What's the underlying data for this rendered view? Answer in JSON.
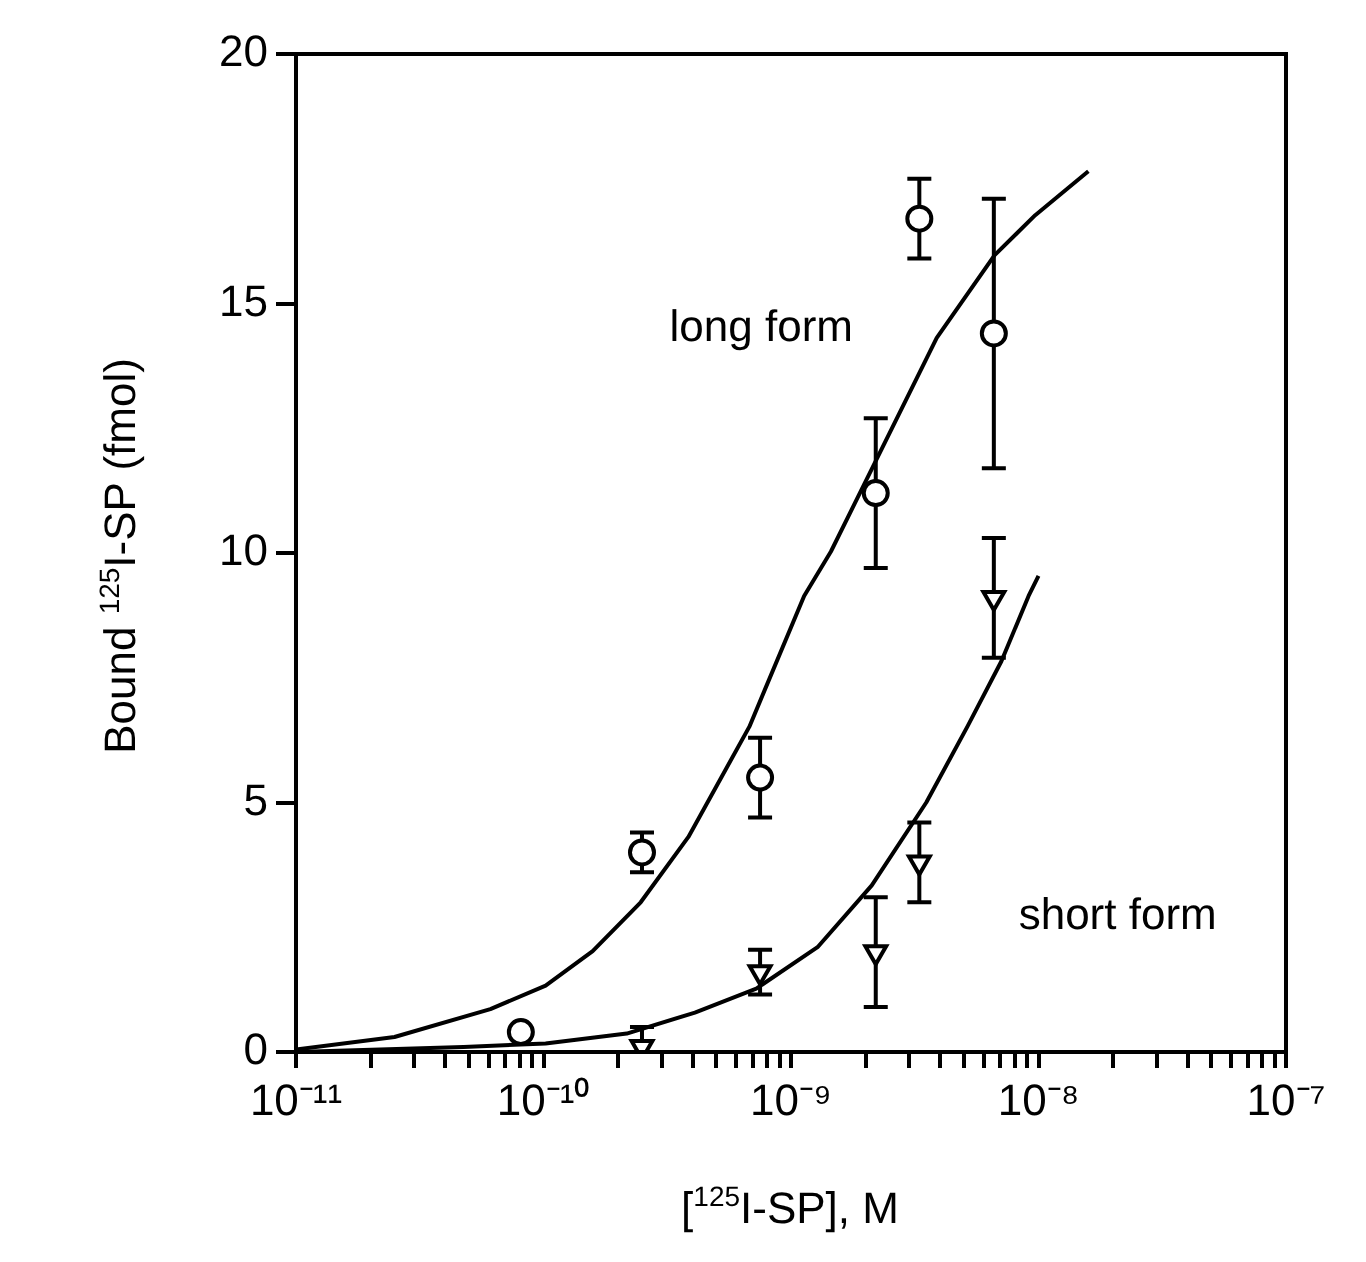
{
  "chart_data": {
    "type": "scatter",
    "xlabel": "[$^{125}$I-SP], M",
    "ylabel": "Bound $^{125}$I-SP (fmol)",
    "log": "x",
    "grid": false,
    "xlim": [
      1e-11,
      1e-07
    ],
    "xticks": [
      {
        "value": 1e-11,
        "label": "10⁻¹¹"
      },
      {
        "value": 2e-11,
        "label": null
      },
      {
        "value": 3e-11,
        "label": null
      },
      {
        "value": 4e-11,
        "label": null
      },
      {
        "value": 5e-11,
        "label": null
      },
      {
        "value": 6e-11,
        "label": null
      },
      {
        "value": 7e-11,
        "label": null
      },
      {
        "value": 8e-11,
        "label": null
      },
      {
        "value": 9e-11,
        "label": null
      },
      {
        "value": 1e-10,
        "label": "10⁻¹⁰"
      },
      {
        "value": 2e-10,
        "label": null
      },
      {
        "value": 3e-10,
        "label": null
      },
      {
        "value": 4e-10,
        "label": null
      },
      {
        "value": 5e-10,
        "label": null
      },
      {
        "value": 6e-10,
        "label": null
      },
      {
        "value": 7e-10,
        "label": null
      },
      {
        "value": 8e-10,
        "label": null
      },
      {
        "value": 9e-10,
        "label": null
      },
      {
        "value": 1e-09,
        "label": "10⁻⁹"
      },
      {
        "value": 2e-09,
        "label": null
      },
      {
        "value": 3e-09,
        "label": null
      },
      {
        "value": 4e-09,
        "label": null
      },
      {
        "value": 5e-09,
        "label": null
      },
      {
        "value": 6e-09,
        "label": null
      },
      {
        "value": 7e-09,
        "label": null
      },
      {
        "value": 8e-09,
        "label": null
      },
      {
        "value": 9e-09,
        "label": null
      },
      {
        "value": 1e-08,
        "label": "10⁻⁸"
      },
      {
        "value": 2e-08,
        "label": null
      },
      {
        "value": 3e-08,
        "label": null
      },
      {
        "value": 4e-08,
        "label": null
      },
      {
        "value": 5e-08,
        "label": null
      },
      {
        "value": 6e-08,
        "label": null
      },
      {
        "value": 7e-08,
        "label": null
      },
      {
        "value": 8e-08,
        "label": null
      },
      {
        "value": 9e-08,
        "label": null
      },
      {
        "value": 1e-07,
        "label": "10⁻⁷"
      }
    ],
    "ylim": [
      0,
      20
    ],
    "yticks": [
      0,
      5,
      10,
      15,
      20
    ],
    "annotations": [
      "long form",
      "short form"
    ],
    "series": [
      {
        "type": "scatter",
        "marker": "circle",
        "color": "#000000",
        "x": [
          8.1e-11,
          2.5e-10,
          7.5e-10,
          2.2e-09,
          3.3e-09,
          6.6e-09
        ],
        "values": [
          0.4,
          4.0,
          5.5,
          11.2,
          16.7,
          14.4
        ],
        "errors": [
          null,
          0.4,
          0.8,
          1.5,
          0.8,
          2.7
        ]
      },
      {
        "type": "scatter",
        "marker": "triangle",
        "color": "#000000",
        "x": [
          2.5e-10,
          7.5e-10,
          2.2e-09,
          3.3e-09,
          6.6e-09
        ],
        "values": [
          0.1,
          1.6,
          2.0,
          3.8,
          9.1
        ],
        "errors": [
          [
            0,
            0.5
          ],
          0.45,
          1.1,
          0.8,
          1.2
        ]
      },
      {
        "type": "line",
        "marker": "none",
        "color": "#000000",
        "x": [
          1e-11,
          2.5e-11,
          6.1e-11,
          1.02e-10,
          1.58e-10,
          2.47e-10,
          3.85e-10,
          6.79e-10,
          1.13e-09,
          1.45e-09,
          2.26e-09,
          3.88e-09,
          6.65e-09,
          9.7e-09,
          1.59e-08
        ],
        "values": [
          0.05,
          0.3,
          0.86,
          1.33,
          2.02,
          3.0,
          4.31,
          6.52,
          9.14,
          10.03,
          11.96,
          14.31,
          15.97,
          16.77,
          17.65
        ]
      },
      {
        "type": "line",
        "marker": "none",
        "color": "#000000",
        "x": [
          1e-11,
          4.75e-11,
          1.02e-10,
          2.17e-10,
          4.09e-10,
          7.24e-10,
          1.28e-09,
          2.12e-09,
          3.52e-09,
          5.16e-09,
          7.08e-09,
          9.12e-09,
          1e-08
        ],
        "values": [
          0,
          0.1,
          0.17,
          0.37,
          0.79,
          1.27,
          2.1,
          3.34,
          5.0,
          6.52,
          7.83,
          9.14,
          9.54
        ]
      }
    ]
  }
}
